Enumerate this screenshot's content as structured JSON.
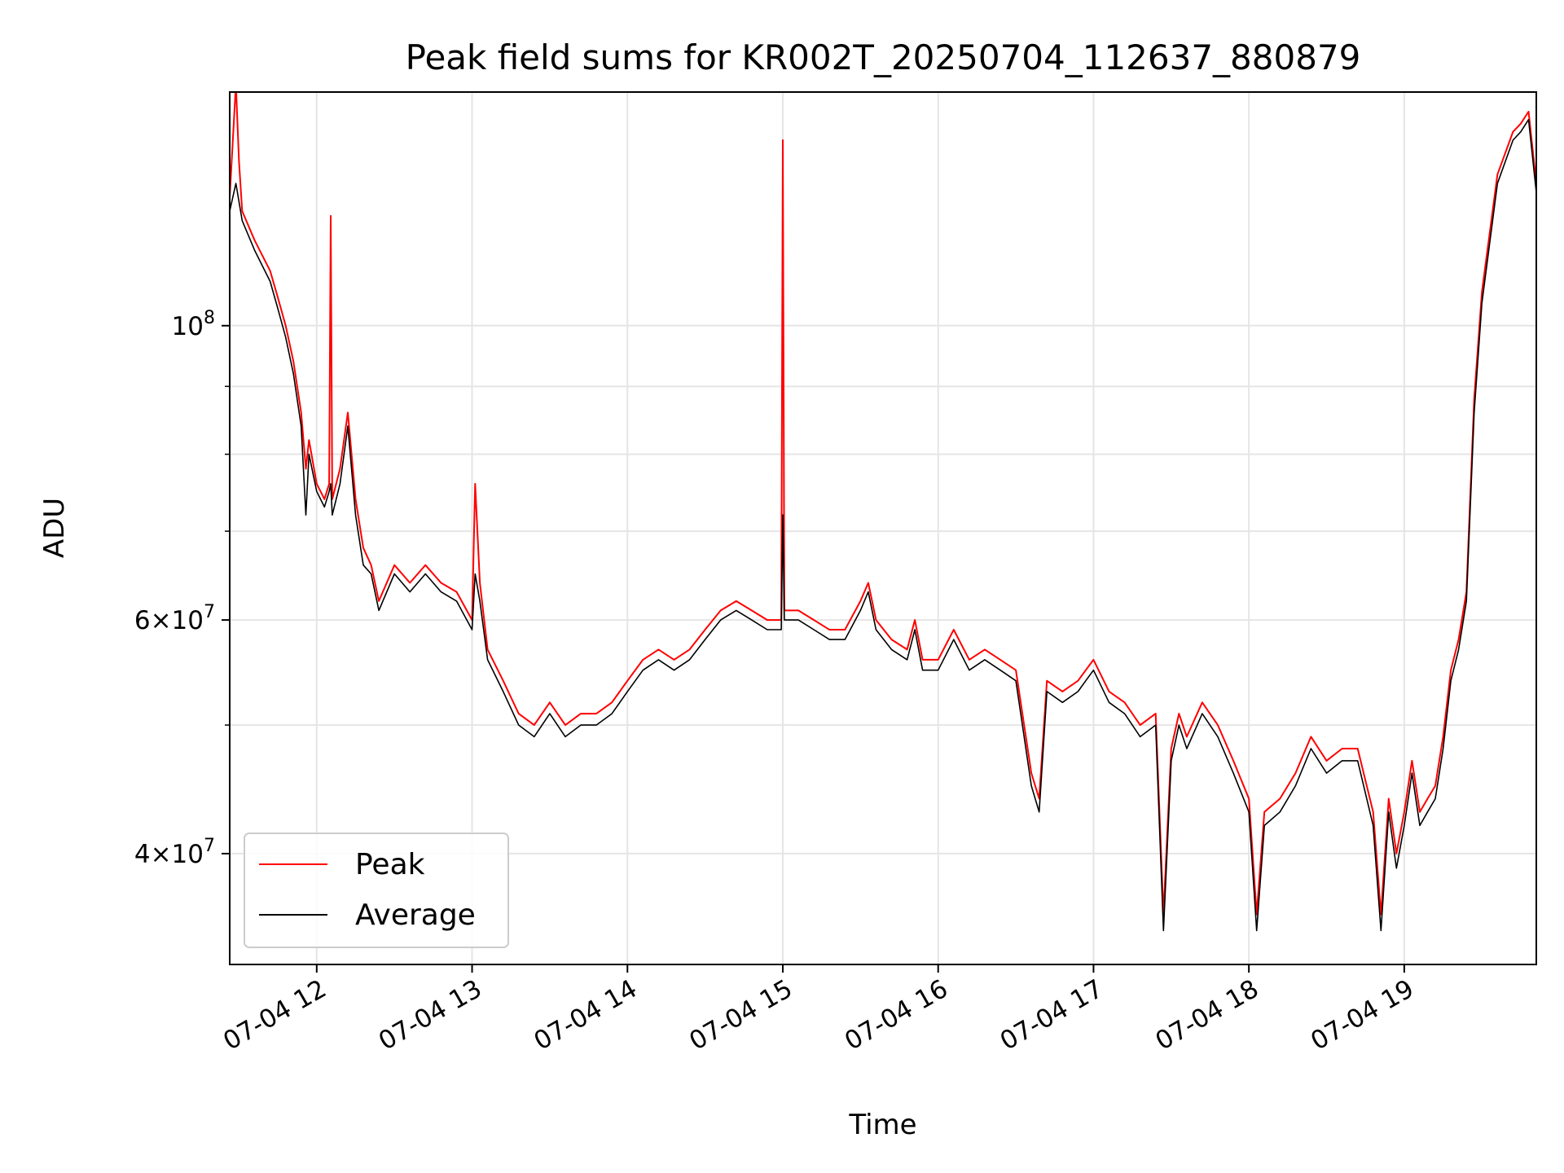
{
  "chart_data": {
    "type": "line",
    "title": "Peak field sums for KR002T_20250704_112637_880879",
    "xlabel": "Time",
    "ylabel": "ADU",
    "x_ticks": [
      "07-04 12",
      "07-04 13",
      "07-04 14",
      "07-04 15",
      "07-04 16",
      "07-04 17",
      "07-04 18",
      "07-04 19"
    ],
    "x_tick_hours": [
      12,
      13,
      14,
      15,
      16,
      17,
      18,
      19
    ],
    "xlim_hours": [
      11.44,
      19.85
    ],
    "y_scale": "log",
    "ylim": [
      33000000,
      150000000
    ],
    "y_major_ticks": [
      {
        "value": 100000000,
        "base": "10",
        "exp": "8"
      },
      {
        "value": 60000000,
        "base": "6×10",
        "exp": "7"
      },
      {
        "value": 40000000,
        "base": "4×10",
        "exp": "7"
      }
    ],
    "y_minor_ticks": [
      90000000,
      80000000,
      70000000,
      50000000
    ],
    "grid": true,
    "legend_position": "lower left",
    "colors": {
      "peak": "#ff0000",
      "average": "#000000"
    },
    "series": [
      {
        "name": "Peak",
        "color": "#ff0000",
        "x_hours": [
          11.44,
          11.48,
          11.5,
          11.52,
          11.6,
          11.7,
          11.75,
          11.8,
          11.85,
          11.9,
          11.93,
          11.95,
          12.0,
          12.05,
          12.08,
          12.09,
          12.1,
          12.15,
          12.2,
          12.25,
          12.3,
          12.35,
          12.4,
          12.5,
          12.6,
          12.7,
          12.8,
          12.9,
          13.0,
          13.02,
          13.05,
          13.1,
          13.2,
          13.3,
          13.4,
          13.5,
          13.6,
          13.7,
          13.8,
          13.9,
          14.0,
          14.1,
          14.2,
          14.3,
          14.4,
          14.5,
          14.6,
          14.7,
          14.8,
          14.9,
          14.99,
          15.0,
          15.01,
          15.1,
          15.2,
          15.3,
          15.4,
          15.5,
          15.55,
          15.6,
          15.7,
          15.8,
          15.85,
          15.9,
          16.0,
          16.1,
          16.2,
          16.3,
          16.4,
          16.5,
          16.6,
          16.65,
          16.7,
          16.8,
          16.9,
          16.95,
          17.0,
          17.1,
          17.2,
          17.3,
          17.4,
          17.45,
          17.5,
          17.55,
          17.6,
          17.7,
          17.8,
          17.9,
          18.0,
          18.05,
          18.1,
          18.2,
          18.3,
          18.4,
          18.5,
          18.6,
          18.7,
          18.8,
          18.85,
          18.9,
          18.95,
          19.0,
          19.05,
          19.1,
          19.15,
          19.2,
          19.25,
          19.3,
          19.35,
          19.4,
          19.45,
          19.5,
          19.6,
          19.7,
          19.75,
          19.8,
          19.85
        ],
        "values": [
          125000000,
          152000000,
          133000000,
          122000000,
          116000000,
          110000000,
          105000000,
          100000000,
          94000000,
          86000000,
          78000000,
          82000000,
          76000000,
          74000000,
          76000000,
          121000000,
          74000000,
          78000000,
          86000000,
          74000000,
          68000000,
          66000000,
          62000000,
          66000000,
          64000000,
          66000000,
          64000000,
          63000000,
          60000000,
          76000000,
          64000000,
          57000000,
          54000000,
          51000000,
          50000000,
          52000000,
          50000000,
          51000000,
          51000000,
          52000000,
          54000000,
          56000000,
          57000000,
          56000000,
          57000000,
          59000000,
          61000000,
          62000000,
          61000000,
          60000000,
          60000000,
          138000000,
          61000000,
          61000000,
          60000000,
          59000000,
          59000000,
          62000000,
          64000000,
          60000000,
          58000000,
          57000000,
          60000000,
          56000000,
          56000000,
          59000000,
          56000000,
          57000000,
          56000000,
          55000000,
          46000000,
          44000000,
          54000000,
          53000000,
          54000000,
          55000000,
          56000000,
          53000000,
          52000000,
          50000000,
          51000000,
          36000000,
          48000000,
          51000000,
          49000000,
          52000000,
          50000000,
          47000000,
          44000000,
          36000000,
          43000000,
          44000000,
          46000000,
          49000000,
          47000000,
          48000000,
          48000000,
          43000000,
          36000000,
          44000000,
          40000000,
          43000000,
          47000000,
          43000000,
          44000000,
          45000000,
          49000000,
          55000000,
          58000000,
          63000000,
          88000000,
          106000000,
          130000000,
          140000000,
          142000000,
          145000000,
          128000000
        ]
      },
      {
        "name": "Average",
        "color": "#000000",
        "x_hours": [
          11.44,
          11.48,
          11.5,
          11.52,
          11.6,
          11.7,
          11.75,
          11.8,
          11.85,
          11.9,
          11.93,
          11.95,
          12.0,
          12.05,
          12.08,
          12.09,
          12.1,
          12.15,
          12.2,
          12.25,
          12.3,
          12.35,
          12.4,
          12.5,
          12.6,
          12.7,
          12.8,
          12.9,
          13.0,
          13.02,
          13.05,
          13.1,
          13.2,
          13.3,
          13.4,
          13.5,
          13.6,
          13.7,
          13.8,
          13.9,
          14.0,
          14.1,
          14.2,
          14.3,
          14.4,
          14.5,
          14.6,
          14.7,
          14.8,
          14.9,
          14.99,
          15.0,
          15.01,
          15.1,
          15.2,
          15.3,
          15.4,
          15.5,
          15.55,
          15.6,
          15.7,
          15.8,
          15.85,
          15.9,
          16.0,
          16.1,
          16.2,
          16.3,
          16.4,
          16.5,
          16.6,
          16.65,
          16.7,
          16.8,
          16.9,
          16.95,
          17.0,
          17.1,
          17.2,
          17.3,
          17.4,
          17.45,
          17.5,
          17.55,
          17.6,
          17.7,
          17.8,
          17.9,
          18.0,
          18.05,
          18.1,
          18.2,
          18.3,
          18.4,
          18.5,
          18.6,
          18.7,
          18.8,
          18.85,
          18.9,
          18.95,
          19.0,
          19.05,
          19.1,
          19.15,
          19.2,
          19.25,
          19.3,
          19.35,
          19.4,
          19.45,
          19.5,
          19.6,
          19.7,
          19.75,
          19.8,
          19.85
        ],
        "values": [
          122000000,
          128000000,
          124000000,
          120000000,
          114000000,
          108000000,
          103000000,
          98000000,
          92000000,
          84000000,
          72000000,
          80000000,
          75000000,
          73000000,
          75000000,
          76000000,
          72000000,
          76000000,
          84000000,
          72000000,
          66000000,
          65000000,
          61000000,
          65000000,
          63000000,
          65000000,
          63000000,
          62000000,
          59000000,
          65000000,
          62000000,
          56000000,
          53000000,
          50000000,
          49000000,
          51000000,
          49000000,
          50000000,
          50000000,
          51000000,
          53000000,
          55000000,
          56000000,
          55000000,
          56000000,
          58000000,
          60000000,
          61000000,
          60000000,
          59000000,
          59000000,
          72000000,
          60000000,
          60000000,
          59000000,
          58000000,
          58000000,
          61000000,
          63000000,
          59000000,
          57000000,
          56000000,
          59000000,
          55000000,
          55000000,
          58000000,
          55000000,
          56000000,
          55000000,
          54000000,
          45000000,
          43000000,
          53000000,
          52000000,
          53000000,
          54000000,
          55000000,
          52000000,
          51000000,
          49000000,
          50000000,
          35000000,
          47000000,
          50000000,
          48000000,
          51000000,
          49000000,
          46000000,
          43000000,
          35000000,
          42000000,
          43000000,
          45000000,
          48000000,
          46000000,
          47000000,
          47000000,
          42000000,
          35000000,
          43000000,
          39000000,
          42000000,
          46000000,
          42000000,
          43000000,
          44000000,
          48000000,
          54000000,
          57000000,
          62000000,
          86000000,
          104000000,
          128000000,
          138000000,
          140000000,
          143000000,
          126000000
        ]
      }
    ]
  }
}
